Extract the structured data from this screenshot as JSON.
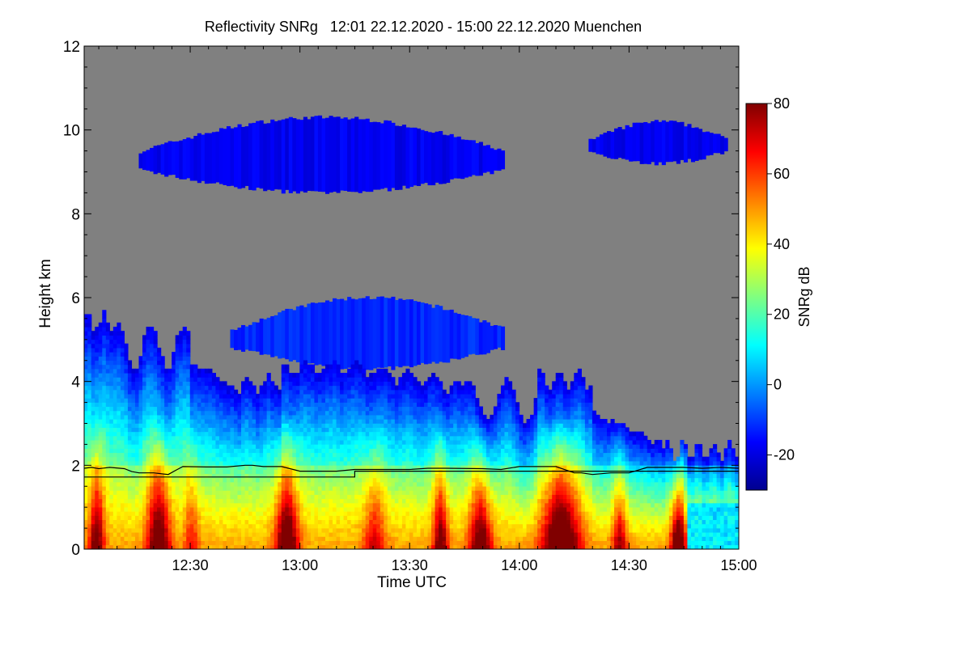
{
  "chart_data": {
    "type": "heatmap",
    "title": "Reflectivity SNRg   12:01 22.12.2020 - 15:00 22.12.2020 Muenchen",
    "xlabel": "Time UTC",
    "ylabel": "Height km",
    "x_ticks": [
      "12:30",
      "13:00",
      "13:30",
      "14:00",
      "14:30",
      "15:00"
    ],
    "x_tick_minutes": [
      30,
      60,
      90,
      120,
      150,
      180
    ],
    "xlim_minutes": [
      1,
      180
    ],
    "y_ticks": [
      0,
      2,
      4,
      6,
      8,
      10,
      12
    ],
    "ylim": [
      0,
      12
    ],
    "colorbar": {
      "label": "SNRg dB",
      "ticks": [
        -20,
        0,
        20,
        40,
        60,
        80
      ],
      "range": [
        -30,
        80
      ],
      "colormap": [
        "#00008f",
        "#0000ff",
        "#0080ff",
        "#00ffff",
        "#80ff80",
        "#ffff00",
        "#ff8000",
        "#ff0000",
        "#800000"
      ]
    },
    "background_color": "#808080",
    "cloud_layers": [
      {
        "name": "upper-cloud-a",
        "minutes": [
          16,
          116
        ],
        "height_km": [
          8.5,
          10.3
        ],
        "snr_db": -18
      },
      {
        "name": "upper-cloud-b",
        "minutes": [
          139,
          177
        ],
        "height_km": [
          9.2,
          10.2
        ],
        "snr_db": -18
      },
      {
        "name": "mid-cloud",
        "minutes": [
          41,
          116
        ],
        "height_km": [
          4.3,
          6.0
        ],
        "snr_db": -12
      },
      {
        "name": "lower-cloud",
        "minutes": [
          1,
          180
        ],
        "height_km": [
          0,
          5.6
        ],
        "snr_db": 20
      }
    ],
    "line_series": [
      {
        "minutes": [
          1,
          3,
          5,
          8,
          12,
          14,
          16,
          20,
          24,
          26,
          28,
          35,
          40,
          45,
          47,
          50,
          55,
          60,
          65,
          70,
          75,
          80,
          90,
          95,
          100,
          110,
          115,
          120,
          130,
          135,
          137,
          140,
          145,
          150,
          155,
          160,
          165,
          170,
          175,
          180
        ],
        "values": [
          1.93,
          1.95,
          1.92,
          1.95,
          1.92,
          1.85,
          1.82,
          1.82,
          1.78,
          1.88,
          1.97,
          1.96,
          1.96,
          2.0,
          2.0,
          1.97,
          1.97,
          1.86,
          1.86,
          1.86,
          1.9,
          1.9,
          1.9,
          1.93,
          1.93,
          1.92,
          1.9,
          1.97,
          1.97,
          1.82,
          1.82,
          1.78,
          1.82,
          1.82,
          1.95,
          1.95,
          1.95,
          1.93,
          1.95,
          1.93
        ]
      },
      {
        "minutes": [
          1,
          75,
          75,
          180
        ],
        "values": [
          1.72,
          1.72,
          1.86,
          1.86
        ]
      }
    ]
  }
}
